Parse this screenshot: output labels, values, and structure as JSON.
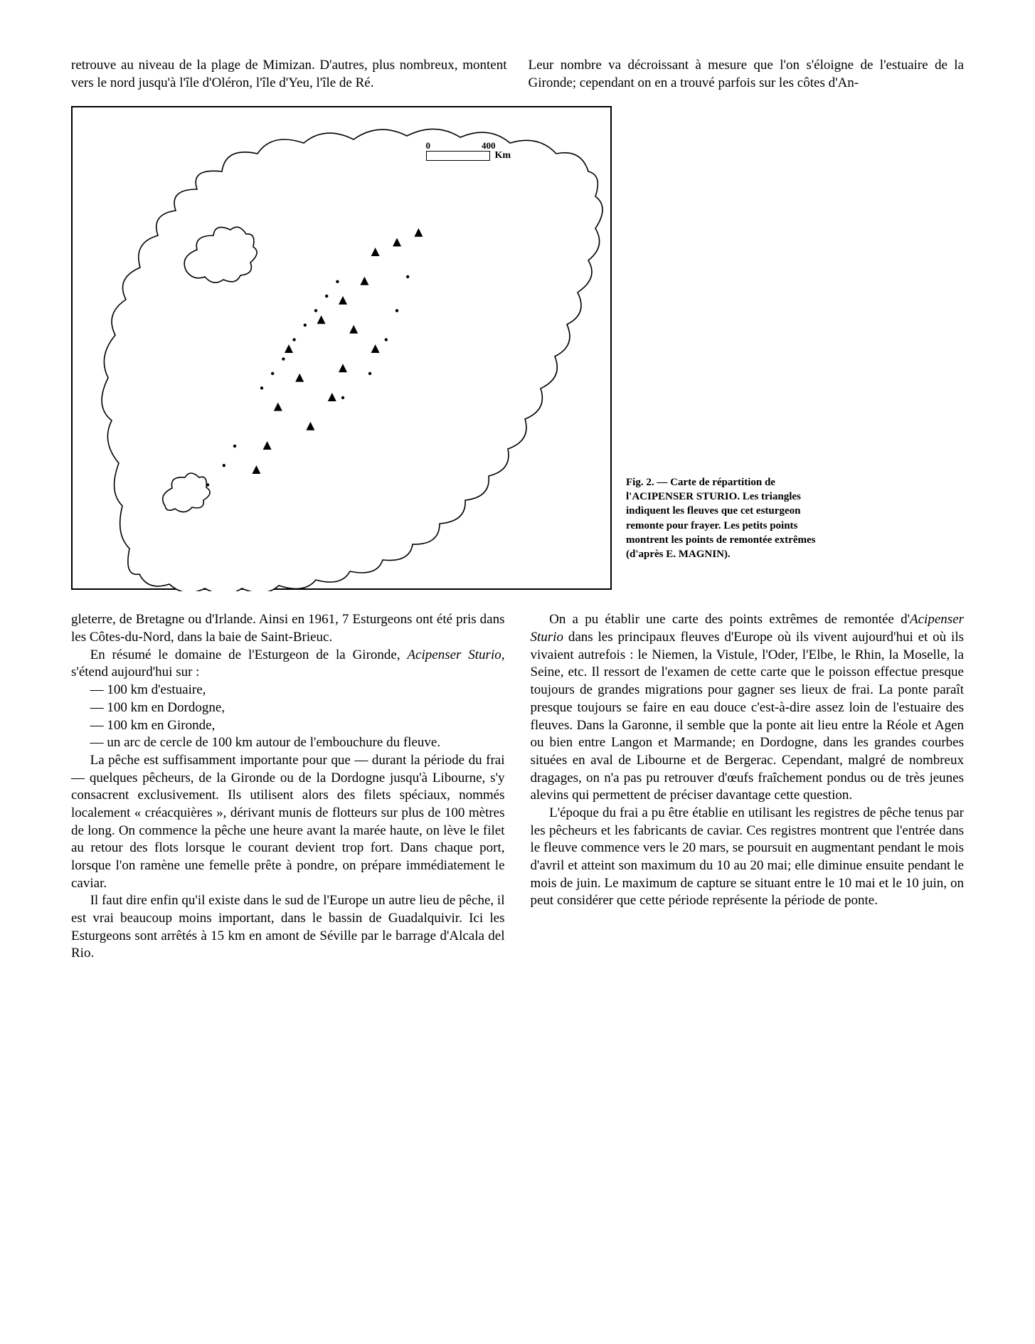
{
  "top": {
    "left": "retrouve au niveau de la plage de Mimizan. D'autres, plus nombreux, montent vers le nord jusqu'à l'île d'Oléron, l'île d'Yeu, l'île de Ré.",
    "right": "Leur nombre va décroissant à mesure que l'on s'éloigne de l'estuaire de la Gironde; cependant on en a trouvé parfois sur les côtes d'An-"
  },
  "figure": {
    "scale_unit": "Km",
    "caption_label": "Fig. 2.",
    "caption_dash": "—",
    "caption_text": "Carte de répartition de l'ACIPENSER STURIO. Les triangles indiquent les fleuves que cet esturgeon remonte pour frayer. Les petits points montrent les points de remontée extrêmes (d'après E. MAGNIN).",
    "map": {
      "type": "map-outline",
      "stroke": "#000000",
      "fill": "#ffffff",
      "stroke_width": 1.5,
      "triangles": [
        [
          0.38,
          0.62
        ],
        [
          0.42,
          0.56
        ],
        [
          0.4,
          0.5
        ],
        [
          0.46,
          0.44
        ],
        [
          0.5,
          0.4
        ],
        [
          0.54,
          0.36
        ],
        [
          0.56,
          0.3
        ],
        [
          0.6,
          0.28
        ],
        [
          0.64,
          0.26
        ],
        [
          0.56,
          0.5
        ],
        [
          0.48,
          0.6
        ],
        [
          0.44,
          0.66
        ],
        [
          0.5,
          0.54
        ],
        [
          0.36,
          0.7
        ],
        [
          0.34,
          0.75
        ],
        [
          0.52,
          0.46
        ]
      ],
      "dots": [
        [
          0.35,
          0.58
        ],
        [
          0.37,
          0.55
        ],
        [
          0.39,
          0.52
        ],
        [
          0.41,
          0.48
        ],
        [
          0.43,
          0.45
        ],
        [
          0.45,
          0.42
        ],
        [
          0.47,
          0.39
        ],
        [
          0.49,
          0.36
        ],
        [
          0.3,
          0.7
        ],
        [
          0.28,
          0.74
        ],
        [
          0.5,
          0.6
        ],
        [
          0.55,
          0.55
        ],
        [
          0.58,
          0.48
        ],
        [
          0.6,
          0.42
        ],
        [
          0.62,
          0.35
        ],
        [
          0.25,
          0.78
        ]
      ]
    }
  },
  "col1": {
    "p1": "gleterre, de Bretagne ou d'Irlande. Ainsi en 1961, 7 Esturgeons ont été pris dans les Côtes-du-Nord, dans la baie de Saint-Brieuc.",
    "p2a": "En résumé le domaine de l'Esturgeon de la Gironde, ",
    "p2b": "Acipenser Sturio,",
    "p2c": " s'étend aujourd'hui sur :",
    "l1": "— 100 km d'estuaire,",
    "l2": "— 100 km en Dordogne,",
    "l3": "— 100 km en Gironde,",
    "l4": "— un arc de cercle de 100 km autour de l'embouchure du fleuve.",
    "p3": "La pêche est suffisamment importante pour que — durant la période du frai — quelques pêcheurs, de la Gironde ou de la Dordogne jusqu'à Libourne, s'y consacrent exclusivement. Ils utilisent alors des filets spéciaux, nommés localement « créacquières », dérivant munis de flotteurs sur plus de 100 mètres de long. On commence la pêche une heure avant la marée haute, on lève le filet au retour des flots lorsque le courant devient trop fort. Dans chaque port, lorsque l'on ramène une femelle prête à pondre, on prépare immédiatement le caviar.",
    "p4": "Il faut dire enfin qu'il existe dans le sud de l'Europe un autre lieu de pêche, il est vrai beaucoup moins important, dans le bassin de Guadalquivir. Ici les Esturgeons sont arrêtés à 15 km en amont de Séville par le barrage d'Alcala del Rio."
  },
  "col2": {
    "p1a": "On a pu établir une carte des points extrêmes de remontée d'",
    "p1b": "Acipenser Sturio",
    "p1c": " dans les principaux fleuves d'Europe où ils vivent aujourd'hui et où ils vivaient autrefois : le Niemen, la Vistule, l'Oder, l'Elbe, le Rhin, la Moselle, la Seine, etc. Il ressort de l'examen de cette carte que le poisson effectue presque toujours de grandes migrations pour gagner ses lieux de frai. La ponte paraît presque toujours se faire en eau douce c'est-à-dire assez loin de l'estuaire des fleuves. Dans la Garonne, il semble que la ponte ait lieu entre la Réole et Agen ou bien entre Langon et Marmande; en Dordogne, dans les grandes courbes situées en aval de Libourne et de Bergerac. Cependant, malgré de nombreux dragages, on n'a pas pu retrouver d'œufs fraîchement pondus ou de très jeunes alevins qui permettent de préciser davantage cette question.",
    "p2": "L'époque du frai a pu être établie en utilisant les registres de pêche tenus par les pêcheurs et les fabricants de caviar. Ces registres montrent que l'entrée dans le fleuve commence vers le 20 mars, se poursuit en augmentant pendant le mois d'avril et atteint son maximum du 10 au 20 mai; elle diminue ensuite pendant le mois de juin. Le maximum de capture se situant entre le 10 mai et le 10 juin, on peut considérer que cette période représente la période de ponte."
  }
}
